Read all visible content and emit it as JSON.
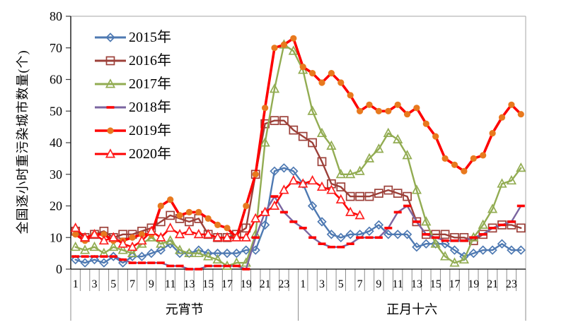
{
  "figure": {
    "y_axis_title": "全国逐小时重污染城市数量(个)",
    "y_ticks": [
      "0",
      "10",
      "20",
      "30",
      "40",
      "50",
      "60",
      "70",
      "80"
    ],
    "x_hour_labels": [
      "1",
      "3",
      "5",
      "7",
      "9",
      "11",
      "13",
      "15",
      "17",
      "19",
      "21",
      "23"
    ],
    "day_groups": [
      {
        "label": "元宵节"
      },
      {
        "label": "正月十六"
      }
    ],
    "axis_color": "#000000",
    "border_color": "#a6a6a6",
    "tick_color": "#8c8c8c"
  },
  "legend": {
    "items": [
      {
        "label": "2015年"
      },
      {
        "label": "2016年"
      },
      {
        "label": "2017年"
      },
      {
        "label": "2018年"
      },
      {
        "label": "2019年"
      },
      {
        "label": "2020年"
      }
    ]
  },
  "chart_data": {
    "type": "line",
    "ylabel": "全国逐小时重污染城市数量(个)",
    "ylim": [
      0,
      80
    ],
    "y_tick_step": 10,
    "grid": false,
    "legend_position": "upper-left-inside",
    "x_structure": "48 hourly categories: 元宵节 hours 1-24 then 正月十六 hours 1-24, tick labels at odd hours",
    "categories_day1_label": "元宵节",
    "categories_day2_label": "正月十六",
    "series": [
      {
        "name": "2015年",
        "color": "#4E79B2",
        "marker": "open-diamond",
        "marker_color": "#4E79B2",
        "line_width": 2.4,
        "values": [
          3,
          2,
          3,
          2,
          4,
          2,
          4,
          4,
          5,
          6,
          8,
          5,
          5,
          6,
          5,
          5,
          5,
          5,
          6,
          6,
          14,
          31,
          32,
          31,
          27,
          20,
          15,
          11,
          10,
          11,
          11,
          12,
          14,
          11,
          11,
          11,
          7,
          8,
          8,
          8,
          6,
          4,
          5,
          6,
          6,
          8,
          6,
          6
        ]
      },
      {
        "name": "2016年",
        "color": "#9C4039",
        "marker": "open-square",
        "marker_color": "#9C4039",
        "line_width": 2.4,
        "values": [
          12,
          10,
          11,
          12,
          10,
          11,
          11,
          12,
          13,
          15,
          17,
          16,
          15,
          16,
          11,
          10,
          10,
          11,
          13,
          30,
          46,
          47,
          47,
          44,
          42,
          40,
          34,
          27,
          26,
          23,
          23,
          23,
          24,
          25,
          24,
          23,
          15,
          11,
          11,
          11,
          10,
          10,
          9,
          11,
          13,
          14,
          14,
          13
        ]
      },
      {
        "name": "2017年",
        "color": "#92AC52",
        "marker": "open-triangle",
        "marker_color": "#92AC52",
        "line_width": 2.4,
        "values": [
          7,
          6,
          7,
          5,
          7,
          6,
          5,
          8,
          10,
          8,
          9,
          6,
          5,
          5,
          4,
          3,
          1,
          2,
          2,
          11,
          40,
          57,
          71,
          69,
          63,
          50,
          43,
          39,
          30,
          30,
          31,
          35,
          38,
          43,
          41,
          36,
          25,
          15,
          8,
          4,
          2,
          3,
          10,
          14,
          19,
          27,
          28,
          32
        ]
      },
      {
        "name": "2018年",
        "color": "#7B65A0",
        "marker": "red-dash",
        "marker_color": "#FE0000",
        "line_width": 2.4,
        "values": [
          4,
          4,
          4,
          4,
          4,
          3,
          2,
          2,
          2,
          2,
          1,
          1,
          0,
          0,
          1,
          1,
          1,
          1,
          0,
          10,
          18,
          23,
          18,
          15,
          13,
          10,
          8,
          7,
          7,
          8,
          10,
          10,
          10,
          13,
          18,
          20,
          15,
          11,
          10,
          9,
          9,
          9,
          10,
          11,
          13,
          14,
          15,
          20
        ]
      },
      {
        "name": "2019年",
        "color": "#FE0000",
        "marker": "filled-circle",
        "marker_color": "#E8791E",
        "line_width": 3.6,
        "values": [
          11,
          9,
          11,
          11,
          9,
          9,
          10,
          11,
          11,
          20,
          22,
          17,
          18,
          18,
          16,
          14,
          13,
          10,
          20,
          30,
          51,
          70,
          71,
          73,
          64,
          62,
          59,
          62,
          59,
          55,
          50,
          52,
          50,
          50,
          52,
          49,
          51,
          46,
          42,
          35,
          33,
          31,
          35,
          36,
          43,
          48,
          52,
          49
        ]
      },
      {
        "name": "2020年",
        "color": "#FE0000",
        "marker": "open-triangle-white",
        "marker_color": "#FE2020",
        "line_width": 2.6,
        "values": [
          13,
          10,
          11,
          9,
          10,
          8,
          7,
          9,
          12,
          10,
          13,
          11,
          12,
          11,
          11,
          10,
          10,
          10,
          10,
          16,
          18,
          20,
          25,
          28,
          27,
          28,
          26,
          25,
          22,
          18,
          17,
          null,
          null,
          null,
          null,
          null,
          null,
          null,
          null,
          null,
          null,
          null,
          null,
          null,
          null,
          null,
          null,
          null
        ]
      }
    ]
  }
}
